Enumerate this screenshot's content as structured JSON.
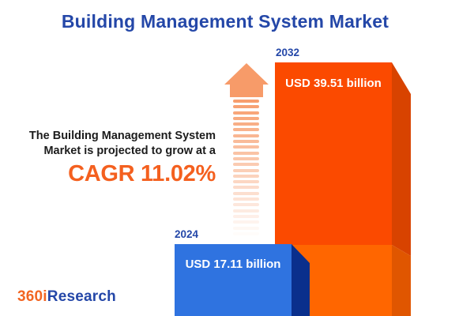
{
  "title": {
    "text": "Building Management System Market",
    "color": "#2447A8"
  },
  "description": {
    "line1": "The Building Management System",
    "line2": "Market is projected to grow at a",
    "text_color": "#1C1C1C",
    "cagr_label": "CAGR 11.02%",
    "cagr_color": "#F4601F"
  },
  "chart_data": {
    "type": "bar",
    "title": "Building Management System Market",
    "categories": [
      "2024",
      "2032"
    ],
    "values": [
      17.11,
      39.51
    ],
    "unit": "USD billion",
    "value_labels": [
      "USD 17.11 billion",
      "USD 39.51 billion"
    ],
    "cagr_percent": 11.02,
    "legend": "none",
    "grid": false,
    "style": "3d-bars, values labeled on bars, years labeled above bars"
  },
  "bars": {
    "b2024": {
      "year": "2024",
      "value_label": "USD 17.11 billion",
      "front_color": "#2F73E0",
      "side_color": "#0A2F8C"
    },
    "b2032": {
      "year": "2032",
      "value_label": "USD 39.51 billion",
      "front_upper_color": "#FB4A00",
      "front_lower_color": "#FF6600",
      "side_upper_color": "#D84300",
      "side_lower_color": "#E05600"
    },
    "year_label_color": "#2447A8"
  },
  "arrow": {
    "head_color": "#F79B69",
    "stripe_color": "#F79E6E",
    "stripe_count": 24
  },
  "logo": {
    "part1": "360i",
    "part2": "Research",
    "part1_color": "#F26522",
    "part2_color": "#2447A8"
  }
}
